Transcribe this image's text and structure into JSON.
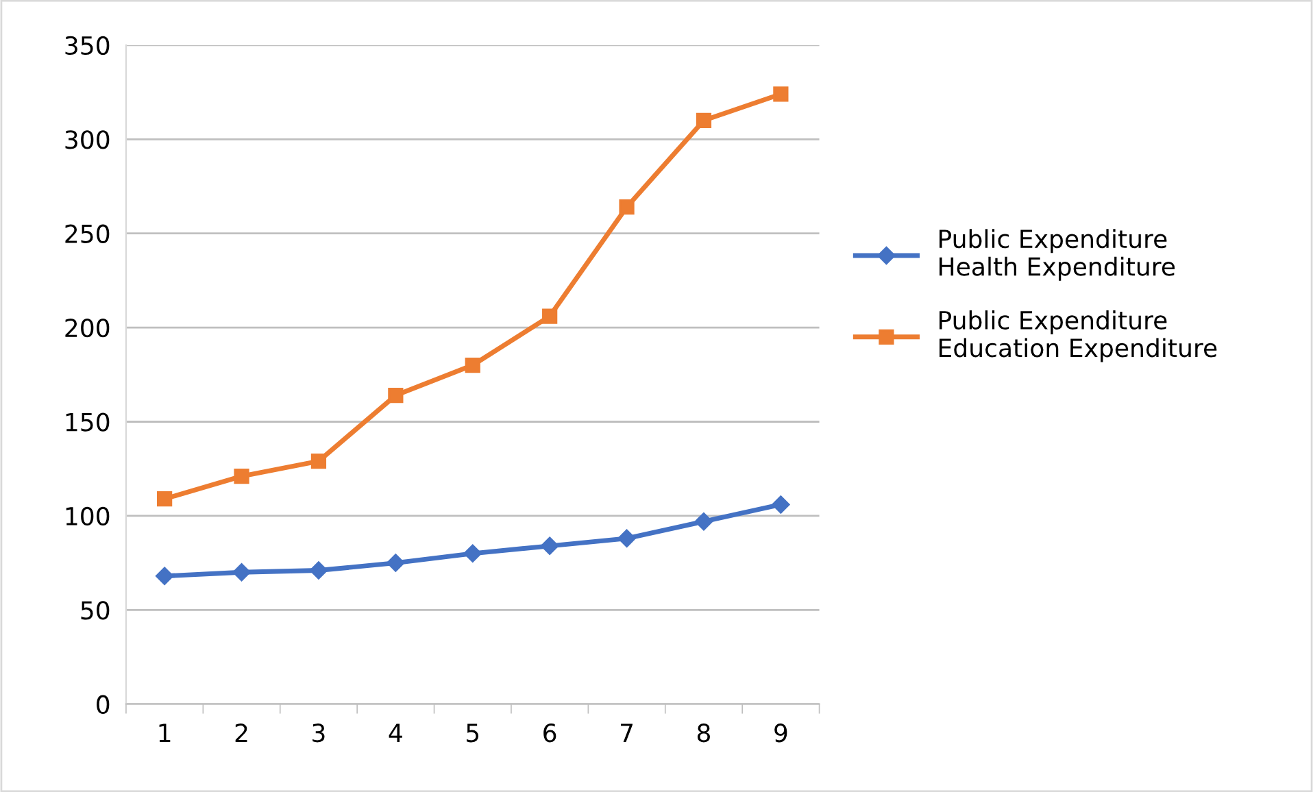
{
  "chart_data": {
    "type": "line",
    "categories": [
      "1",
      "2",
      "3",
      "4",
      "5",
      "6",
      "7",
      "8",
      "9"
    ],
    "series": [
      {
        "name": "Public Expenditure\nHealth Expenditure",
        "color": "#4472c4",
        "marker": "diamond",
        "values": [
          68,
          70,
          71,
          75,
          80,
          84,
          88,
          97,
          106
        ]
      },
      {
        "name": "Public Expenditure\nEducation Expenditure",
        "color": "#ed7d31",
        "marker": "square",
        "values": [
          109,
          121,
          129,
          164,
          180,
          206,
          264,
          310,
          324
        ]
      }
    ],
    "ylim": [
      0,
      350
    ],
    "yticks": [
      0,
      50,
      100,
      150,
      200,
      250,
      300,
      350
    ],
    "grid": "y",
    "legend": "right",
    "line_style": "solid"
  }
}
